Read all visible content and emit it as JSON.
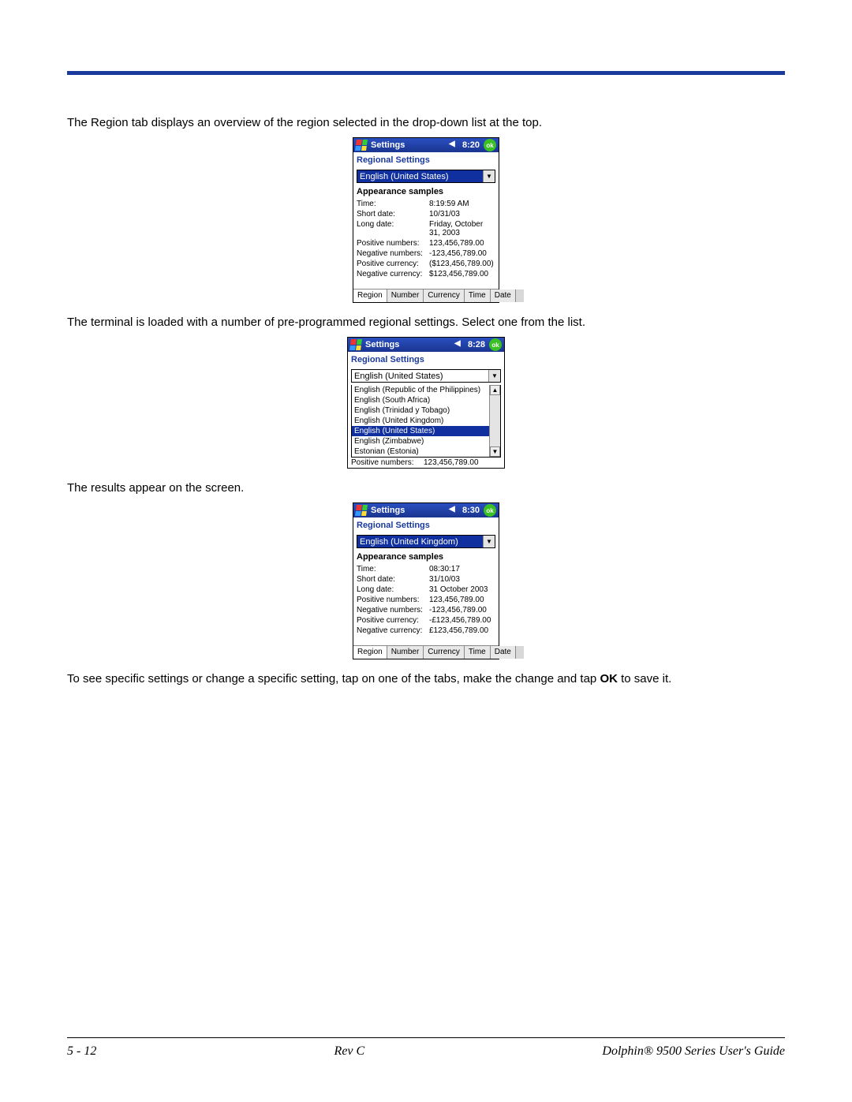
{
  "page": {
    "accent_color": "#1a3a9e",
    "para1": "The Region tab displays an overview of the region selected in the drop-down list at the top.",
    "para2": "The terminal is loaded with a number of pre-programmed regional settings. Select one from the list.",
    "para3": "The results appear on the screen.",
    "para4_prefix": "To see specific settings or change a specific setting, tap on one of the tabs, make the change and tap ",
    "para4_bold": "OK",
    "para4_suffix": " to save it."
  },
  "footer": {
    "left": "5 - 12",
    "mid": "Rev C",
    "right": "Dolphin® 9500 Series User's Guide"
  },
  "shot1": {
    "title": "Settings",
    "time": "8:20",
    "ok": "ok",
    "subhead": "Regional Settings",
    "combo": "English (United States)",
    "section": "Appearance samples",
    "rows": [
      {
        "k": "Time:",
        "v": "8:19:59 AM"
      },
      {
        "k": "Short date:",
        "v": "10/31/03"
      },
      {
        "k": "Long date:",
        "v": "Friday, October 31, 2003"
      },
      {
        "k": "Positive numbers:",
        "v": "123,456,789.00"
      },
      {
        "k": "Negative numbers:",
        "v": "-123,456,789.00"
      },
      {
        "k": "Positive currency:",
        "v": "($123,456,789.00)"
      },
      {
        "k": "Negative currency:",
        "v": "$123,456,789.00"
      }
    ],
    "tabs": [
      "Region",
      "Number",
      "Currency",
      "Time",
      "Date"
    ]
  },
  "shot2": {
    "title": "Settings",
    "time": "8:28",
    "ok": "ok",
    "subhead": "Regional Settings",
    "combo": "English (United States)",
    "options": [
      "English (Republic of the Philippines)",
      "English (South Africa)",
      "English (Trinidad y Tobago)",
      "English (United Kingdom)",
      "English (United States)",
      "English (Zimbabwe)",
      "Estonian (Estonia)"
    ],
    "selected_index": 4,
    "bottom": {
      "k": "Positive numbers:",
      "v": "123,456,789.00"
    }
  },
  "shot3": {
    "title": "Settings",
    "time": "8:30",
    "ok": "ok",
    "subhead": "Regional Settings",
    "combo": "English (United Kingdom)",
    "section": "Appearance samples",
    "rows": [
      {
        "k": "Time:",
        "v": "08:30:17"
      },
      {
        "k": "Short date:",
        "v": "31/10/03"
      },
      {
        "k": "Long date:",
        "v": "31 October 2003"
      },
      {
        "k": "Positive numbers:",
        "v": "123,456,789.00"
      },
      {
        "k": "Negative numbers:",
        "v": "-123,456,789.00"
      },
      {
        "k": "Positive currency:",
        "v": "-£123,456,789.00"
      },
      {
        "k": "Negative currency:",
        "v": "£123,456,789.00"
      }
    ],
    "tabs": [
      "Region",
      "Number",
      "Currency",
      "Time",
      "Date"
    ]
  }
}
